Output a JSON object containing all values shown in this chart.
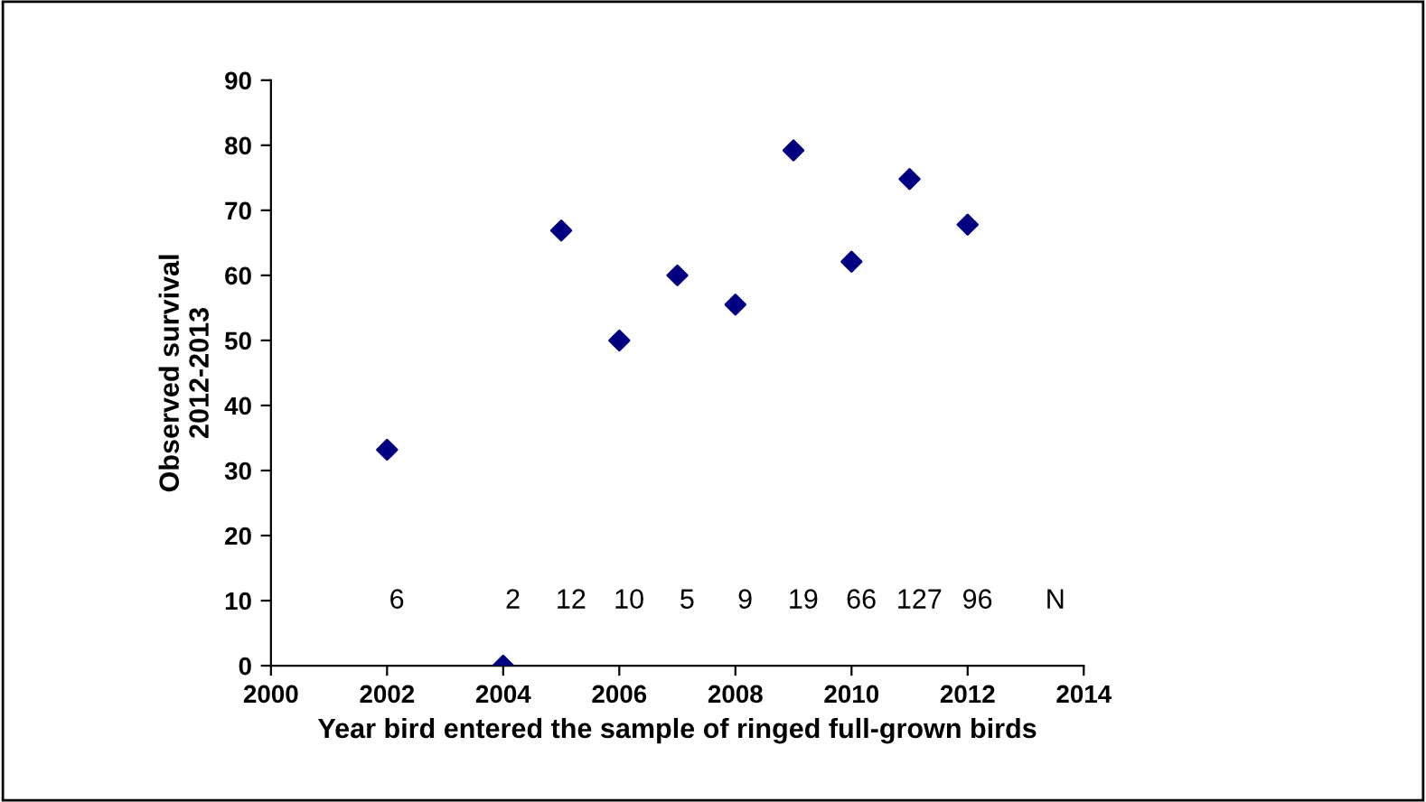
{
  "chart_data": {
    "type": "scatter",
    "xlabel": "Year bird entered the sample of ringed full-grown birds",
    "ylabel": "Observed survival\n2012-2013",
    "x": [
      2002,
      2004,
      2005,
      2006,
      2007,
      2008,
      2009,
      2010,
      2011,
      2012
    ],
    "series": [
      {
        "color": "#000080",
        "values": [
          33.2,
          0,
          66.9,
          50,
          60,
          55.5,
          79.2,
          62.1,
          74.8,
          67.8
        ]
      }
    ],
    "marker": "diamond",
    "xlim": [
      2000,
      2014
    ],
    "xticks": [
      2000,
      2002,
      2004,
      2006,
      2008,
      2010,
      2012,
      2014
    ],
    "ylim": [
      0,
      90
    ],
    "yticks": [
      0,
      10,
      20,
      30,
      40,
      50,
      60,
      70,
      80,
      90
    ],
    "grid": false,
    "legend": false,
    "annotations": [
      "6",
      "2",
      "12",
      "10",
      "5",
      "9",
      "19",
      "66",
      "127",
      "96",
      "N"
    ]
  }
}
